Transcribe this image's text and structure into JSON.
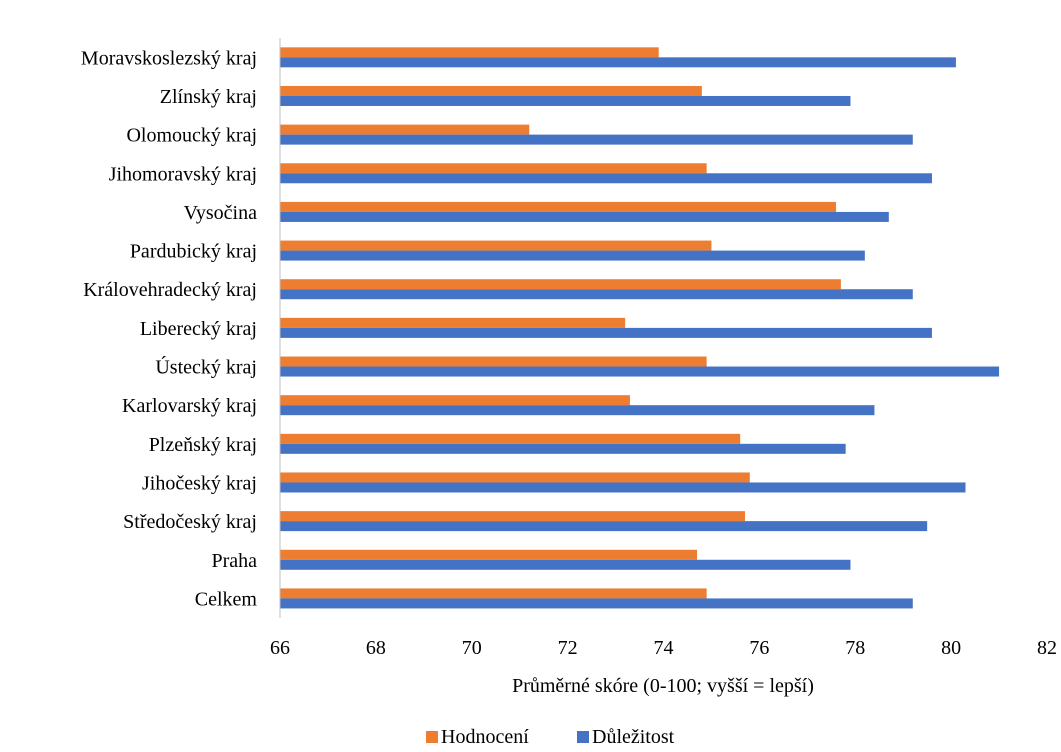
{
  "chart_data": {
    "type": "bar",
    "orientation": "horizontal",
    "categories": [
      "Moravskoslezský kraj",
      "Zlínský kraj",
      "Olomoucký kraj",
      "Jihomoravský kraj",
      "Vysočina",
      "Pardubický kraj",
      "Královehradecký kraj",
      "Liberecký kraj",
      "Ústecký kraj",
      "Karlovarský kraj",
      "Plzeňský kraj",
      "Jihočeský kraj",
      "Středočeský kraj",
      "Praha",
      "Celkem"
    ],
    "series": [
      {
        "name": "Hodnocení",
        "color": "#ED7D31",
        "values": [
          73.9,
          74.8,
          71.2,
          74.9,
          77.6,
          75.0,
          77.7,
          73.2,
          74.9,
          73.3,
          75.6,
          75.8,
          75.7,
          74.7,
          74.9
        ]
      },
      {
        "name": "Důležitost",
        "color": "#4472C4",
        "values": [
          80.1,
          77.9,
          79.2,
          79.6,
          78.7,
          78.2,
          79.2,
          79.6,
          81.0,
          78.4,
          77.8,
          80.3,
          79.5,
          77.9,
          79.2
        ]
      }
    ],
    "xlabel": "Průměrné skóre (0-100; vyšší = lepší)",
    "xlim": [
      66,
      82
    ],
    "ticks": [
      "66",
      "68",
      "70",
      "72",
      "74",
      "76",
      "78",
      "80",
      "82"
    ],
    "grid": false,
    "legend": "bottom"
  }
}
